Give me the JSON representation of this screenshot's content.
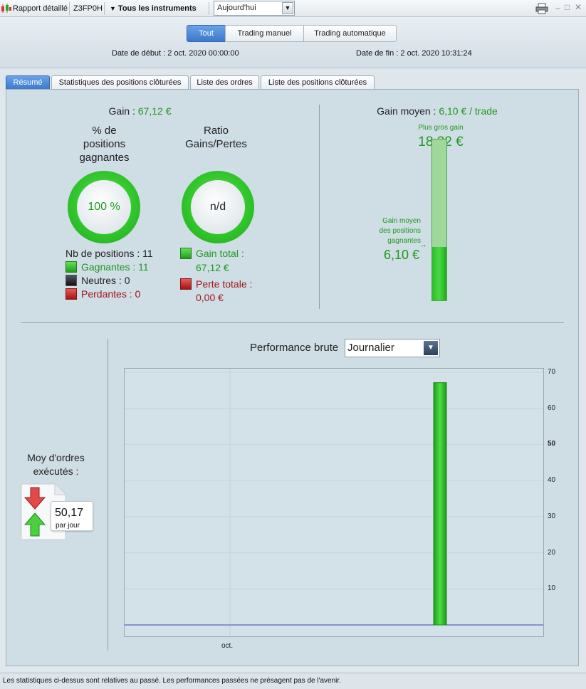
{
  "titlebar": {
    "report_label": "Rapport détaillé",
    "account": "Z3FP0H",
    "instruments": "Tous les instruments",
    "period_selected": "Aujourd'hui",
    "window_buttons": [
      "print-icon",
      "minimize-icon",
      "maximize-icon",
      "close-icon"
    ]
  },
  "header": {
    "segments": [
      "Tout",
      "Trading manuel",
      "Trading automatique"
    ],
    "active_segment": "Tout",
    "start_label": "Date de début :",
    "start_value": "2 oct. 2020 00:00:00",
    "end_label": "Date de fin :",
    "end_value": "2 oct. 2020 10:31:24"
  },
  "tabs": [
    "Résumé",
    "Statistiques des positions clôturées",
    "Liste des ordres",
    "Liste des positions clôturées"
  ],
  "summary": {
    "gain_label": "Gain :",
    "gain_value": "67,12 €",
    "pct_title_1": "% de",
    "pct_title_2": "positions",
    "pct_title_3": "gagnantes",
    "pct_value": "100 %",
    "ratio_title_1": "Ratio",
    "ratio_title_2": "Gains/Pertes",
    "ratio_value": "n/d",
    "nb_positions": "Nb de positions : 11",
    "gagnantes": "Gagnantes : 11",
    "neutres": "Neutres : 0",
    "perdantes": "Perdantes : 0",
    "gain_total_label": "Gain total :",
    "gain_total_value": "67,12 €",
    "perte_totale_label": "Perte totale :",
    "perte_totale_value": "0,00 €",
    "gain_moyen_label": "Gain moyen :",
    "gain_moyen_value": "6,10 € / trade",
    "plus_gros_gain_label": "Plus gros gain",
    "plus_gros_gain_value": "18,32 €",
    "gain_moyen_pos_1": "Gain moyen",
    "gain_moyen_pos_2": "des positions",
    "gain_moyen_pos_3": "gagnantes",
    "gain_moyen_pos_value": "6,10 €",
    "gain_moyen_fraction": 0.333
  },
  "orders": {
    "title_1": "Moy d'ordres",
    "title_2": "exécutés :",
    "value": "50,17",
    "unit": "par jour"
  },
  "performance": {
    "label": "Performance brute",
    "period": "Journalier"
  },
  "chart_data": {
    "type": "bar",
    "categories": [
      "oct."
    ],
    "series": [
      {
        "values": [
          67.12
        ]
      }
    ],
    "xlabel": "",
    "ylabel": "",
    "ylim": [
      0,
      70
    ],
    "y_ticks": [
      "10",
      "20",
      "30",
      "40",
      "50",
      "60",
      "70"
    ],
    "grid": true
  },
  "footer": "Les statistiques ci-dessus sont relatives au passé. Les performances passées ne présagent pas de l'avenir."
}
